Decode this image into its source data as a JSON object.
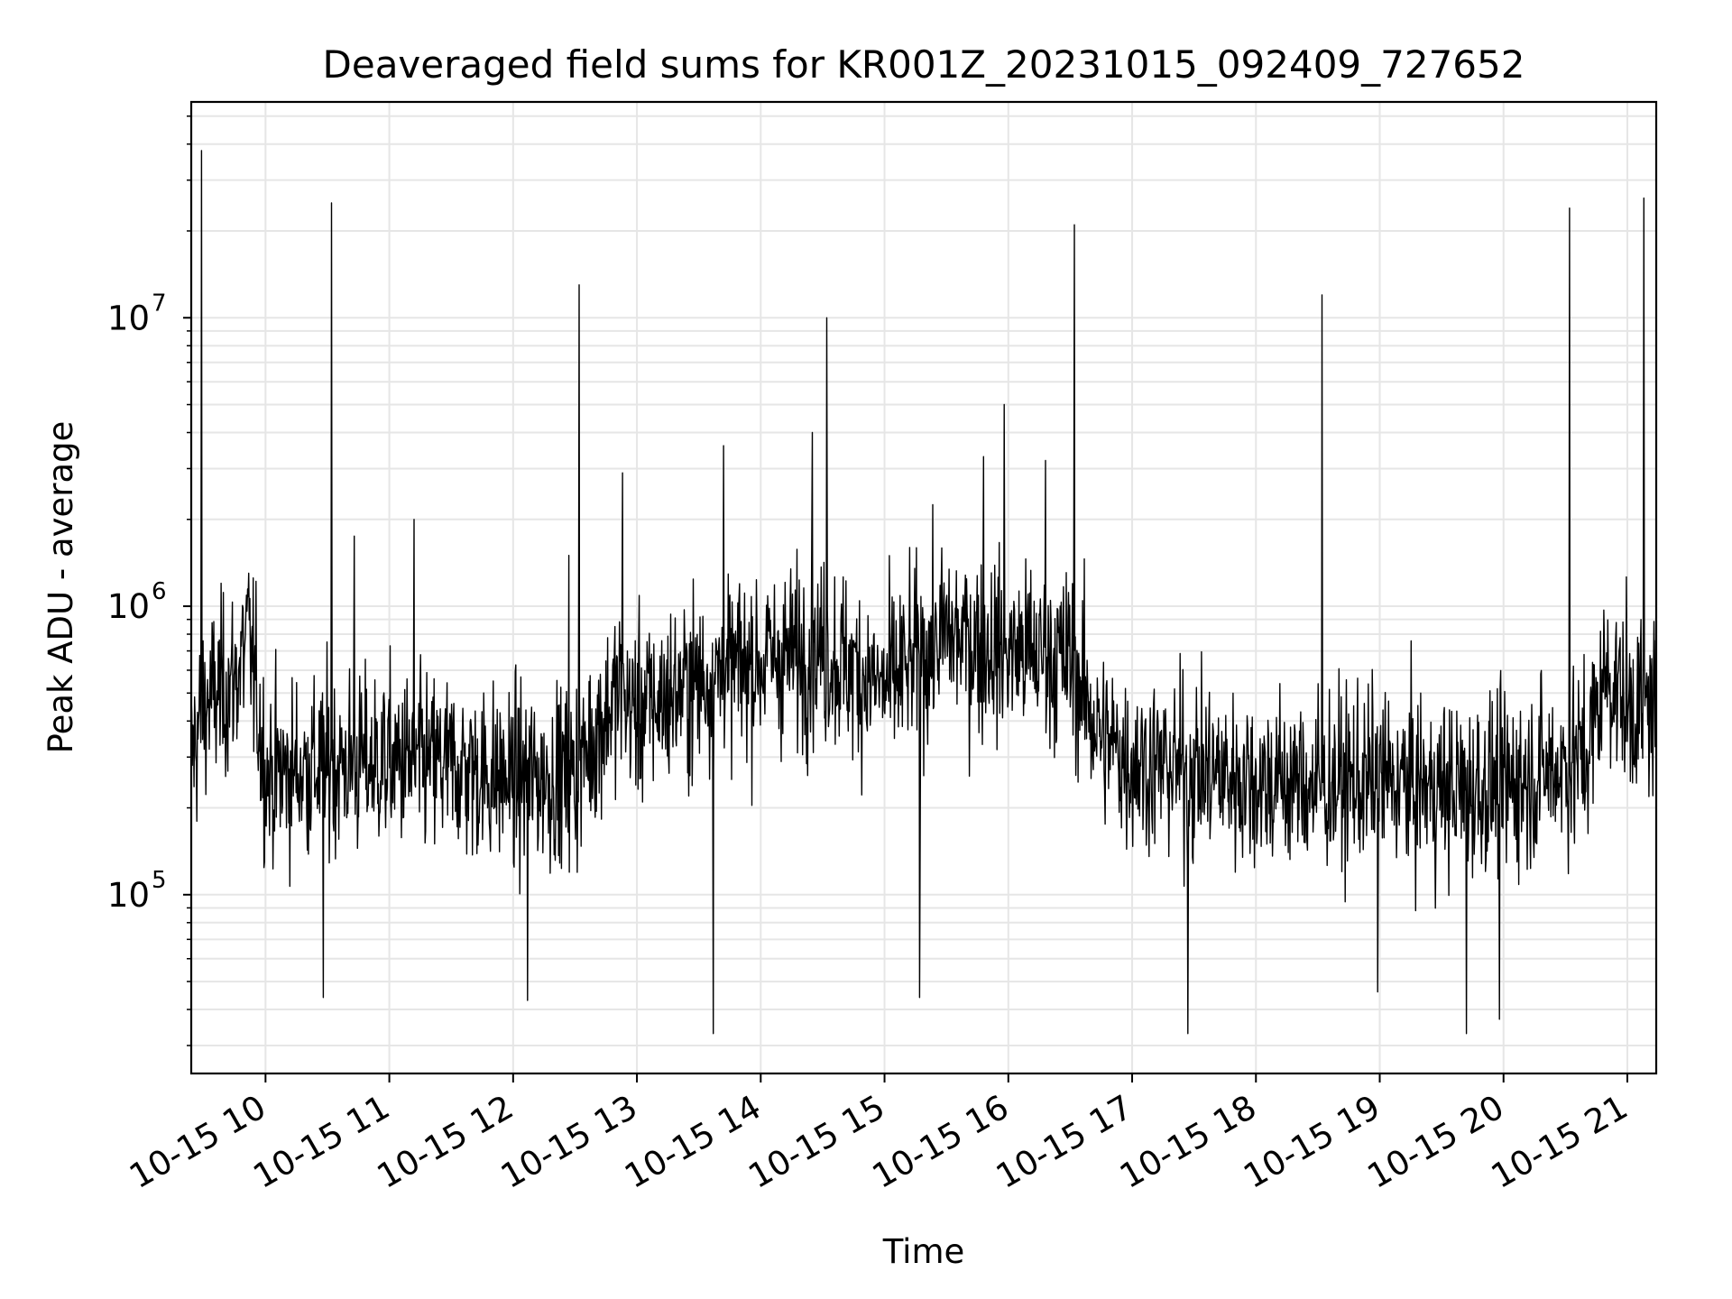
{
  "chart_data": {
    "type": "line",
    "title": "Deaveraged field sums for KR001Z_20231015_092409_727652",
    "xlabel": "Time",
    "ylabel": "Peak ADU - average",
    "y_scale": "log",
    "xlim": [
      "2023-10-15 09:24",
      "2023-10-15 21:14"
    ],
    "ylim": [
      24000,
      56000000
    ],
    "grid": true,
    "grid_minor_y": true,
    "line_color": "#000000",
    "grid_color": "#e6e6e6",
    "x_ticks": [
      {
        "time": "2023-10-15 10:00",
        "label": "10-15 10"
      },
      {
        "time": "2023-10-15 11:00",
        "label": "10-15 11"
      },
      {
        "time": "2023-10-15 12:00",
        "label": "10-15 12"
      },
      {
        "time": "2023-10-15 13:00",
        "label": "10-15 13"
      },
      {
        "time": "2023-10-15 14:00",
        "label": "10-15 14"
      },
      {
        "time": "2023-10-15 15:00",
        "label": "10-15 15"
      },
      {
        "time": "2023-10-15 16:00",
        "label": "10-15 16"
      },
      {
        "time": "2023-10-15 17:00",
        "label": "10-15 17"
      },
      {
        "time": "2023-10-15 18:00",
        "label": "10-15 18"
      },
      {
        "time": "2023-10-15 19:00",
        "label": "10-15 19"
      },
      {
        "time": "2023-10-15 20:00",
        "label": "10-15 20"
      },
      {
        "time": "2023-10-15 21:00",
        "label": "10-15 21"
      }
    ],
    "y_ticks": [
      {
        "value": 100000,
        "base": "10",
        "exp": "5"
      },
      {
        "value": 1000000,
        "base": "10",
        "exp": "6"
      },
      {
        "value": 10000000,
        "base": "10",
        "exp": "7"
      }
    ],
    "series": [
      {
        "color": "#000000",
        "baseline": [
          [
            "2023-10-15 09:24",
            300000
          ],
          [
            "2023-10-15 09:30",
            450000
          ],
          [
            "2023-10-15 09:45",
            550000
          ],
          [
            "2023-10-15 09:52",
            800000
          ],
          [
            "2023-10-15 10:00",
            260000
          ],
          [
            "2023-10-15 10:30",
            280000
          ],
          [
            "2023-10-15 11:00",
            290000
          ],
          [
            "2023-10-15 11:30",
            280000
          ],
          [
            "2023-10-15 12:00",
            250000
          ],
          [
            "2023-10-15 12:30",
            260000
          ],
          [
            "2023-10-15 12:50",
            500000
          ],
          [
            "2023-10-15 13:00",
            430000
          ],
          [
            "2023-10-15 13:30",
            550000
          ],
          [
            "2023-10-15 14:00",
            650000
          ],
          [
            "2023-10-15 14:30",
            700000
          ],
          [
            "2023-10-15 15:00",
            520000
          ],
          [
            "2023-10-15 15:30",
            800000
          ],
          [
            "2023-10-15 16:00",
            700000
          ],
          [
            "2023-10-15 16:30",
            650000
          ],
          [
            "2023-10-15 16:45",
            350000
          ],
          [
            "2023-10-15 17:00",
            290000
          ],
          [
            "2023-10-15 17:30",
            270000
          ],
          [
            "2023-10-15 18:00",
            250000
          ],
          [
            "2023-10-15 18:30",
            240000
          ],
          [
            "2023-10-15 19:00",
            250000
          ],
          [
            "2023-10-15 19:30",
            230000
          ],
          [
            "2023-10-15 20:00",
            240000
          ],
          [
            "2023-10-15 20:40",
            300000
          ],
          [
            "2023-10-15 20:50",
            600000
          ],
          [
            "2023-10-15 21:00",
            450000
          ],
          [
            "2023-10-15 21:14",
            450000
          ]
        ],
        "spikes": [
          [
            "2023-10-15 09:29",
            38000000
          ],
          [
            "2023-10-15 10:32",
            25000000
          ],
          [
            "2023-10-15 12:32",
            13000000
          ],
          [
            "2023-10-15 14:32",
            10000000
          ],
          [
            "2023-10-15 16:32",
            21000000
          ],
          [
            "2023-10-15 18:32",
            12000000
          ],
          [
            "2023-10-15 20:32",
            24000000
          ],
          [
            "2023-10-15 21:08",
            26000000
          ],
          [
            "2023-10-15 15:58",
            5000000
          ],
          [
            "2023-10-15 14:25",
            4000000
          ],
          [
            "2023-10-15 12:53",
            2900000
          ],
          [
            "2023-10-15 13:42",
            3600000
          ],
          [
            "2023-10-15 15:48",
            3300000
          ],
          [
            "2023-10-15 16:18",
            3200000
          ],
          [
            "2023-10-15 11:12",
            2000000
          ],
          [
            "2023-10-15 12:27",
            1500000
          ],
          [
            "2023-10-15 10:43",
            1750000
          ]
        ],
        "dips": [
          [
            "2023-10-15 13:37",
            33000
          ],
          [
            "2023-10-15 17:27",
            33000
          ],
          [
            "2023-10-15 19:42",
            33000
          ],
          [
            "2023-10-15 15:17",
            44000
          ],
          [
            "2023-10-15 12:07",
            43000
          ],
          [
            "2023-10-15 10:28",
            44000
          ],
          [
            "2023-10-15 18:59",
            46000
          ],
          [
            "2023-10-15 19:58",
            37000
          ]
        ]
      }
    ]
  }
}
